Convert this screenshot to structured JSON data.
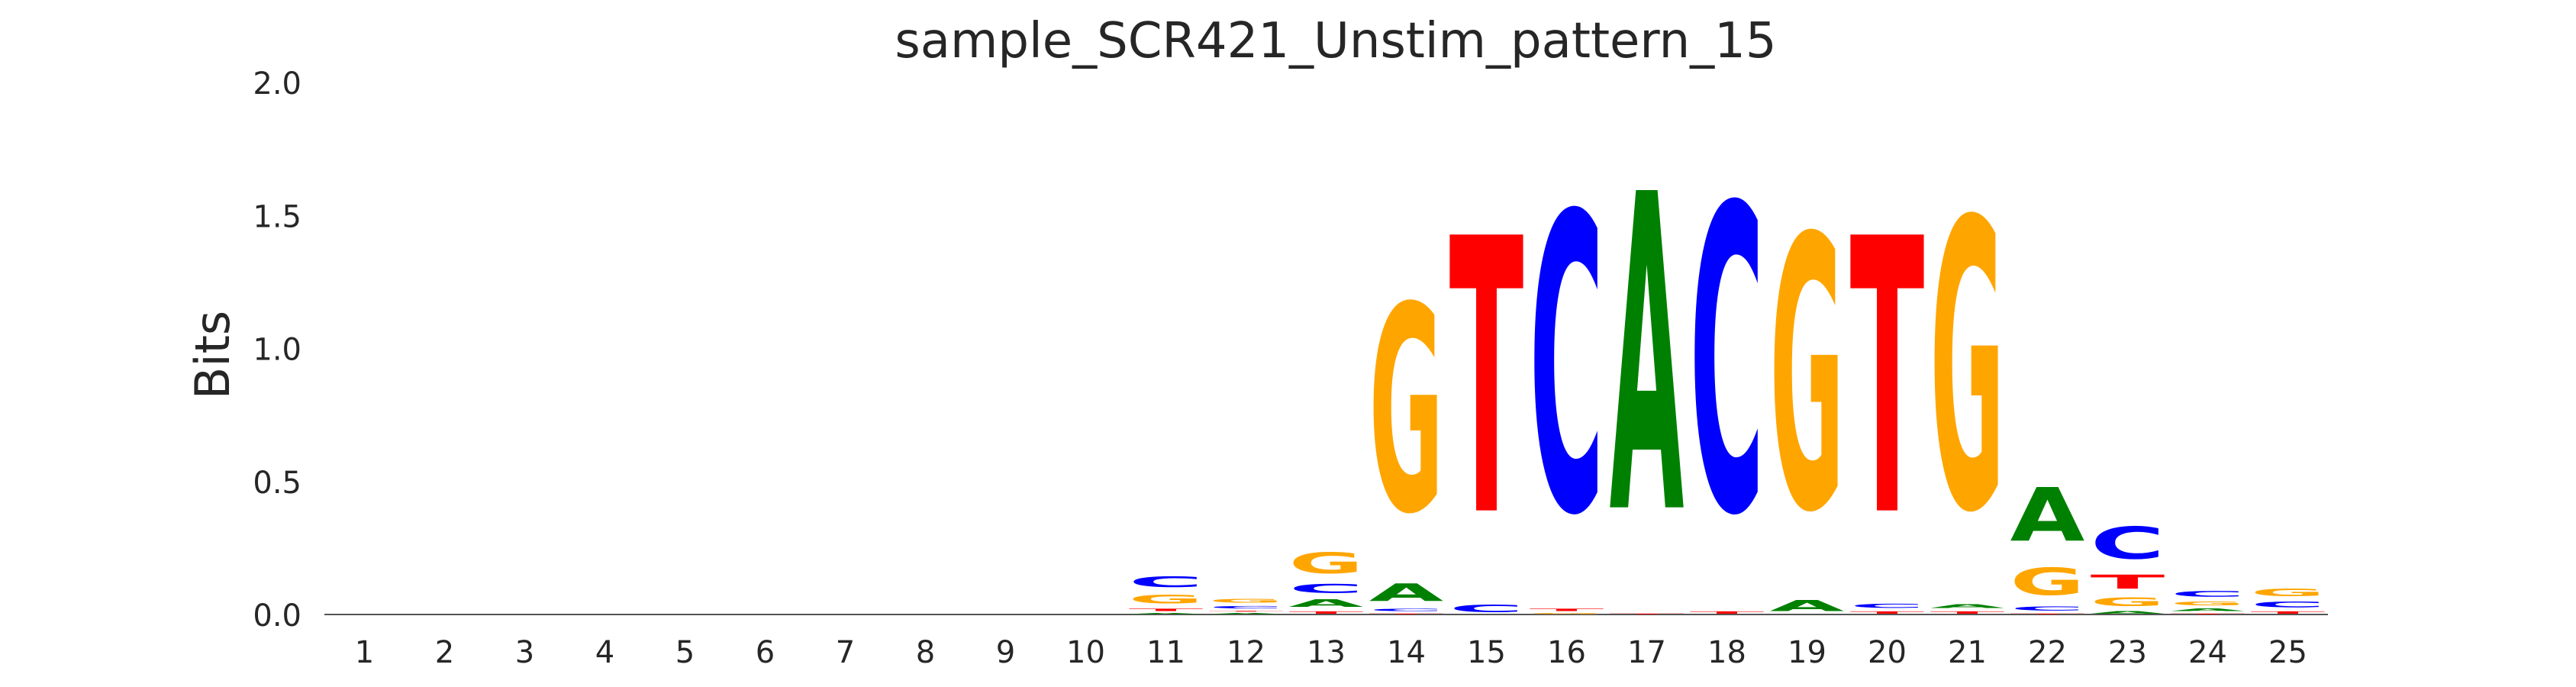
{
  "chart_data": {
    "type": "sequence-logo",
    "title": "sample_SCR421_Unstim_pattern_15",
    "xlabel": "",
    "ylabel": "Bits",
    "ylim": [
      0,
      2.0
    ],
    "yticks": [
      "0.0",
      "0.5",
      "1.0",
      "1.5",
      "2.0"
    ],
    "categories": [
      "1",
      "2",
      "3",
      "4",
      "5",
      "6",
      "7",
      "8",
      "9",
      "10",
      "11",
      "12",
      "13",
      "14",
      "15",
      "16",
      "17",
      "18",
      "19",
      "20",
      "21",
      "22",
      "23",
      "24",
      "25"
    ],
    "grid": false,
    "legend": "none",
    "colors": {
      "A": "#008000",
      "C": "#0000ff",
      "G": "#ffa500",
      "T": "#ff0000"
    },
    "positions": [
      [],
      [],
      [],
      [],
      [],
      [],
      [],
      [],
      [],
      [],
      [
        [
          "A",
          0.01
        ],
        [
          "T",
          0.02
        ],
        [
          "G",
          0.06
        ],
        [
          "C",
          0.07
        ]
      ],
      [
        [
          "A",
          0.01
        ],
        [
          "T",
          0.01
        ],
        [
          "C",
          0.02
        ],
        [
          "G",
          0.03
        ]
      ],
      [
        [
          "T",
          0.02
        ],
        [
          "A",
          0.05
        ],
        [
          "C",
          0.06
        ],
        [
          "G",
          0.13
        ]
      ],
      [
        [
          "T",
          0.01
        ],
        [
          "C",
          0.02
        ],
        [
          "A",
          0.11
        ],
        [
          "G",
          1.25
        ]
      ],
      [
        [
          "C",
          0.05
        ],
        [
          "T",
          1.67
        ]
      ],
      [
        [
          "G",
          0.01
        ],
        [
          "T",
          0.02
        ],
        [
          "C",
          1.8
        ]
      ],
      [
        [
          "T",
          0.01
        ],
        [
          "A",
          1.92
        ]
      ],
      [
        [
          "T",
          0.02
        ],
        [
          "C",
          1.85
        ]
      ],
      [
        [
          "A",
          0.07
        ],
        [
          "G",
          1.65
        ]
      ],
      [
        [
          "T",
          0.02
        ],
        [
          "C",
          0.03
        ],
        [
          "T",
          1.67
        ]
      ],
      [
        [
          "T",
          0.02
        ],
        [
          "A",
          0.03
        ],
        [
          "G",
          1.75
        ]
      ],
      [
        [
          "T",
          0.01
        ],
        [
          "C",
          0.03
        ],
        [
          "G",
          0.17
        ],
        [
          "A",
          0.33
        ]
      ],
      [
        [
          "A",
          0.02
        ],
        [
          "G",
          0.06
        ],
        [
          "T",
          0.09
        ],
        [
          "C",
          0.2
        ]
      ],
      [
        [
          "T",
          0.01
        ],
        [
          "A",
          0.02
        ],
        [
          "G",
          0.03
        ],
        [
          "C",
          0.04
        ]
      ],
      [
        [
          "T",
          0.02
        ],
        [
          "C",
          0.04
        ],
        [
          "G",
          0.05
        ]
      ]
    ]
  }
}
